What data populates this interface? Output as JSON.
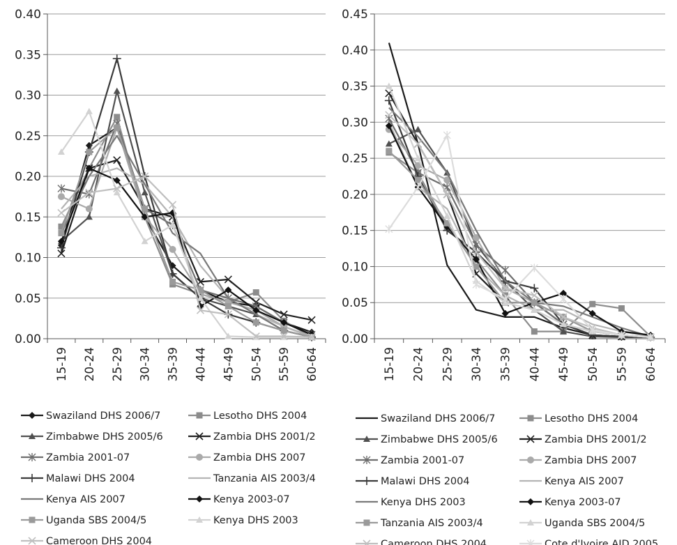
{
  "chart_data": [
    {
      "type": "line",
      "x": [
        "15-19",
        "20-24",
        "25-29",
        "30-34",
        "35-39",
        "40-44",
        "45-49",
        "50-54",
        "55-59",
        "60-64"
      ],
      "ylim": [
        0,
        0.4
      ],
      "yticks": [
        "0.00",
        "0.05",
        "0.10",
        "0.15",
        "0.20",
        "0.25",
        "0.30",
        "0.35",
        "0.40"
      ],
      "grid": true,
      "legend_position": "bottom",
      "series": [
        {
          "name": "Swaziland DHS 2006/7",
          "color": "#1a1a1a",
          "marker": "diamond",
          "values": [
            0.115,
            0.238,
            0.26,
            0.15,
            0.09,
            0.06,
            0.045,
            0.04,
            0.02,
            0.008
          ]
        },
        {
          "name": "Lesotho DHS 2004",
          "color": "#8c8c8c",
          "marker": "square",
          "values": [
            0.138,
            0.21,
            0.273,
            0.15,
            0.067,
            0.055,
            0.045,
            0.057,
            0.022,
            0.002
          ]
        },
        {
          "name": "Zimbabwe DHS 2005/6",
          "color": "#505050",
          "marker": "triangle",
          "values": [
            0.12,
            0.15,
            0.305,
            0.18,
            0.08,
            0.05,
            0.04,
            0.03,
            0.01,
            0.002
          ]
        },
        {
          "name": "Zambia DHS 2001/2",
          "color": "#202020",
          "marker": "x",
          "values": [
            0.105,
            0.21,
            0.22,
            0.16,
            0.15,
            0.07,
            0.073,
            0.045,
            0.03,
            0.023
          ]
        },
        {
          "name": "Zambia 2001-07",
          "color": "#6e6e6e",
          "marker": "star",
          "values": [
            0.185,
            0.178,
            0.265,
            0.16,
            0.14,
            0.06,
            0.05,
            0.04,
            0.02,
            0.005
          ]
        },
        {
          "name": "Zambia DHS 2007",
          "color": "#aaaaaa",
          "marker": "circle",
          "values": [
            0.175,
            0.16,
            0.26,
            0.15,
            0.11,
            0.055,
            0.045,
            0.035,
            0.015,
            0.003
          ]
        },
        {
          "name": "Malawi DHS 2004",
          "color": "#3a3a3a",
          "marker": "plus",
          "values": [
            0.112,
            0.23,
            0.345,
            0.2,
            0.08,
            0.05,
            0.03,
            0.02,
            0.01,
            0.002
          ]
        },
        {
          "name": "Tanzania AIS 2003/4",
          "color": "#b4b4b4",
          "marker": "none",
          "values": [
            0.16,
            0.2,
            0.21,
            0.19,
            0.15,
            0.09,
            0.05,
            0.03,
            0.015,
            0.002
          ]
        },
        {
          "name": "Kenya AIS 2007",
          "color": "#787878",
          "marker": "none",
          "values": [
            0.13,
            0.2,
            0.25,
            0.19,
            0.13,
            0.105,
            0.05,
            0.03,
            0.01,
            0.002
          ]
        },
        {
          "name": "Kenya 2003-07",
          "color": "#111111",
          "marker": "diamond",
          "values": [
            0.12,
            0.21,
            0.195,
            0.15,
            0.155,
            0.04,
            0.06,
            0.035,
            0.02,
            0.005
          ]
        },
        {
          "name": "Uganda SBS 2004/5",
          "color": "#9a9a9a",
          "marker": "square",
          "values": [
            0.13,
            0.23,
            0.26,
            0.16,
            0.07,
            0.06,
            0.04,
            0.02,
            0.01,
            0.002
          ]
        },
        {
          "name": "Kenya DHS 2003",
          "color": "#d2d2d2",
          "marker": "triangle",
          "values": [
            0.23,
            0.28,
            0.18,
            0.12,
            0.14,
            0.05,
            0.003,
            0.002,
            0.002,
            0.002
          ]
        },
        {
          "name": "Cameroon DHS 2004",
          "color": "#bfbfbf",
          "marker": "x",
          "values": [
            0.155,
            0.18,
            0.185,
            0.2,
            0.165,
            0.035,
            0.03,
            0.003,
            0.003,
            0.002
          ]
        }
      ]
    },
    {
      "type": "line",
      "x": [
        "15-19",
        "20-24",
        "25-29",
        "30-34",
        "35-39",
        "40-44",
        "45-49",
        "50-54",
        "55-59",
        "60-64"
      ],
      "ylim": [
        0,
        0.45
      ],
      "yticks": [
        "0.00",
        "0.05",
        "0.10",
        "0.15",
        "0.20",
        "0.25",
        "0.30",
        "0.35",
        "0.40",
        "0.45"
      ],
      "grid": true,
      "legend_position": "bottom",
      "series": [
        {
          "name": "Swaziland DHS 2006/7",
          "color": "#1a1a1a",
          "marker": "none",
          "values": [
            0.41,
            0.27,
            0.102,
            0.04,
            0.03,
            0.03,
            0.015,
            0.005,
            0.003,
            0.002
          ]
        },
        {
          "name": "Lesotho DHS 2004",
          "color": "#8c8c8c",
          "marker": "square",
          "values": [
            0.258,
            0.23,
            0.155,
            0.11,
            0.06,
            0.01,
            0.01,
            0.048,
            0.042,
            0.003
          ]
        },
        {
          "name": "Zimbabwe DHS 2005/6",
          "color": "#505050",
          "marker": "triangle",
          "values": [
            0.27,
            0.29,
            0.23,
            0.13,
            0.08,
            0.04,
            0.01,
            0.003,
            0.002,
            0.002
          ]
        },
        {
          "name": "Zambia DHS 2001/2",
          "color": "#202020",
          "marker": "x",
          "values": [
            0.34,
            0.27,
            0.2,
            0.09,
            0.05,
            0.05,
            0.02,
            0.005,
            0.003,
            0.002
          ]
        },
        {
          "name": "Zambia 2001-07",
          "color": "#6e6e6e",
          "marker": "star",
          "values": [
            0.305,
            0.23,
            0.21,
            0.13,
            0.095,
            0.05,
            0.02,
            0.01,
            0.005,
            0.002
          ]
        },
        {
          "name": "Zambia DHS 2007",
          "color": "#aaaaaa",
          "marker": "circle",
          "values": [
            0.29,
            0.24,
            0.22,
            0.14,
            0.07,
            0.05,
            0.03,
            0.01,
            0.005,
            0.002
          ]
        },
        {
          "name": "Malawi DHS 2004",
          "color": "#3a3a3a",
          "marker": "plus",
          "values": [
            0.33,
            0.225,
            0.15,
            0.12,
            0.08,
            0.07,
            0.02,
            0.005,
            0.003,
            0.002
          ]
        },
        {
          "name": "Kenya AIS 2007",
          "color": "#b4b4b4",
          "marker": "none",
          "values": [
            0.3,
            0.21,
            0.18,
            0.1,
            0.06,
            0.04,
            0.04,
            0.02,
            0.01,
            0.003
          ]
        },
        {
          "name": "Kenya DHS 2003",
          "color": "#787878",
          "marker": "none",
          "values": [
            0.32,
            0.28,
            0.23,
            0.15,
            0.08,
            0.05,
            0.045,
            0.03,
            0.015,
            0.003
          ]
        },
        {
          "name": "Kenya 2003-07",
          "color": "#111111",
          "marker": "diamond",
          "values": [
            0.295,
            0.21,
            0.155,
            0.11,
            0.035,
            0.05,
            0.063,
            0.035,
            0.01,
            0.005
          ]
        },
        {
          "name": "Tanzania AIS 2003/4",
          "color": "#9a9a9a",
          "marker": "square",
          "values": [
            0.26,
            0.22,
            0.16,
            0.1,
            0.05,
            0.05,
            0.03,
            0.01,
            0.005,
            0.002
          ]
        },
        {
          "name": "Uganda SBS 2004/5",
          "color": "#d2d2d2",
          "marker": "triangle",
          "values": [
            0.35,
            0.25,
            0.17,
            0.08,
            0.05,
            0.04,
            0.02,
            0.01,
            0.005,
            0.002
          ]
        },
        {
          "name": "Cameroon DHS 2004",
          "color": "#bfbfbf",
          "marker": "x",
          "values": [
            0.31,
            0.27,
            0.2,
            0.12,
            0.07,
            0.06,
            0.03,
            0.015,
            0.005,
            0.002
          ]
        },
        {
          "name": "Cote d'Ivoire AID 2005",
          "color": "#dcdcdc",
          "marker": "star",
          "values": [
            0.152,
            0.21,
            0.282,
            0.075,
            0.055,
            0.098,
            0.055,
            0.012,
            0.005,
            0.002
          ]
        }
      ]
    }
  ]
}
